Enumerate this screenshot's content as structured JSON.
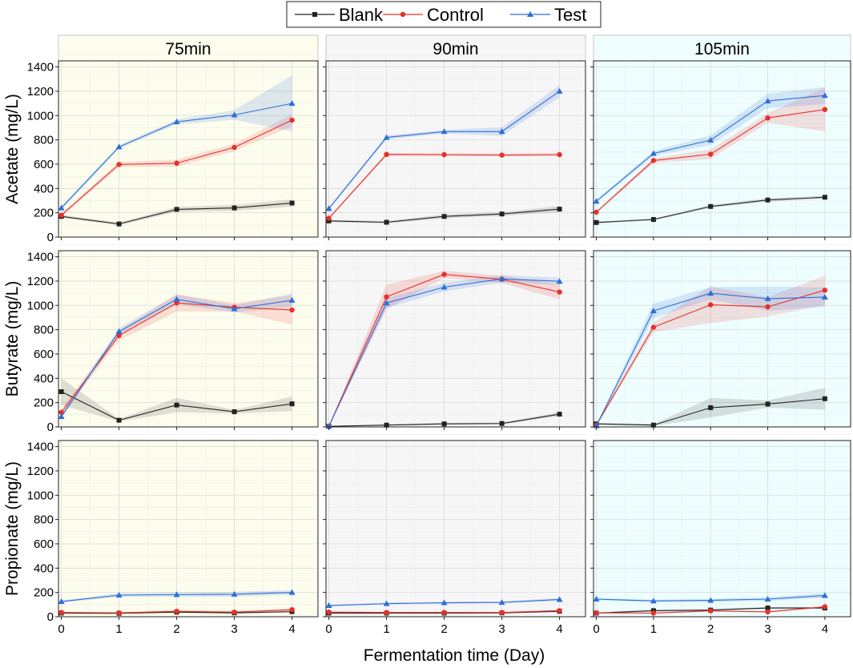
{
  "chart_data": {
    "type": "line",
    "title": "",
    "xlabel": "Fermentation time (Day)",
    "x": [
      0,
      1,
      2,
      3,
      4
    ],
    "x_ticks": [
      "0",
      "1",
      "2",
      "3",
      "4"
    ],
    "xlim": [
      -0.05,
      4.45
    ],
    "ylim": [
      0,
      1450
    ],
    "y_ticks": [
      "0",
      "200",
      "400",
      "600",
      "800",
      "1000",
      "1200",
      "1400"
    ],
    "grid": true,
    "legend": {
      "placement": "top-center",
      "entries": [
        {
          "name": "Blank",
          "color": "#222222",
          "marker": "square"
        },
        {
          "name": "Control",
          "color": "#e8302a",
          "marker": "circle"
        },
        {
          "name": "Test",
          "color": "#2c6fd8",
          "marker": "triangle"
        }
      ]
    },
    "columns": [
      {
        "title": "75min",
        "background": "#fdfdee"
      },
      {
        "title": "90min",
        "background": "#f6f6f6"
      },
      {
        "title": "105min",
        "background": "#eefefe"
      }
    ],
    "rows": [
      {
        "ylabel": "Acetate (mg/L)"
      },
      {
        "ylabel": "Butyrate (mg/L)"
      },
      {
        "ylabel": "Propionate (mg/L)"
      }
    ],
    "panels": [
      [
        {
          "series": [
            {
              "name": "Blank",
              "values": [
                170,
                108,
                228,
                240,
                280
              ],
              "band": [
                12,
                12,
                20,
                25,
                30
              ]
            },
            {
              "name": "Control",
              "values": [
                180,
                598,
                608,
                738,
                962
              ],
              "band": [
                15,
                20,
                30,
                30,
                50
              ]
            },
            {
              "name": "Test",
              "values": [
                240,
                742,
                948,
                1005,
                1100
              ],
              "band": [
                15,
                15,
                20,
                40,
                230
              ]
            }
          ]
        },
        {
          "series": [
            {
              "name": "Blank",
              "values": [
                133,
                122,
                170,
                190,
                230
              ],
              "band": [
                10,
                10,
                15,
                15,
                25
              ]
            },
            {
              "name": "Control",
              "values": [
                155,
                680,
                678,
                675,
                678
              ],
              "band": [
                10,
                12,
                12,
                12,
                15
              ]
            },
            {
              "name": "Test",
              "values": [
                235,
                820,
                868,
                868,
                1200
              ],
              "band": [
                12,
                15,
                15,
                35,
                50
              ]
            }
          ]
        },
        {
          "series": [
            {
              "name": "Blank",
              "values": [
                120,
                145,
                252,
                305,
                328
              ],
              "band": [
                8,
                8,
                12,
                15,
                12
              ]
            },
            {
              "name": "Control",
              "values": [
                205,
                630,
                682,
                980,
                1050
              ],
              "band": [
                12,
                20,
                40,
                40,
                180
              ]
            },
            {
              "name": "Test",
              "values": [
                295,
                688,
                798,
                1120,
                1165
              ],
              "band": [
                12,
                20,
                40,
                60,
                70
              ]
            }
          ]
        }
      ],
      [
        {
          "series": [
            {
              "name": "Blank",
              "values": [
                290,
                55,
                180,
                125,
                190
              ],
              "band": [
                110,
                10,
                60,
                15,
                60
              ]
            },
            {
              "name": "Control",
              "values": [
                120,
                752,
                1020,
                985,
                962
              ],
              "band": [
                25,
                40,
                70,
                35,
                120
              ]
            },
            {
              "name": "Test",
              "values": [
                85,
                785,
                1050,
                972,
                1042
              ],
              "band": [
                20,
                30,
                40,
                30,
                55
              ]
            }
          ]
        },
        {
          "series": [
            {
              "name": "Blank",
              "values": [
                5,
                15,
                25,
                28,
                105
              ],
              "band": [
                3,
                5,
                8,
                8,
                15
              ]
            },
            {
              "name": "Control",
              "values": [
                5,
                1070,
                1255,
                1215,
                1110
              ],
              "band": [
                5,
                100,
                30,
                30,
                60
              ]
            },
            {
              "name": "Test",
              "values": [
                5,
                1020,
                1150,
                1218,
                1198
              ],
              "band": [
                5,
                40,
                35,
                30,
                30
              ]
            }
          ]
        },
        {
          "series": [
            {
              "name": "Blank",
              "values": [
                25,
                15,
                158,
                188,
                232
              ],
              "band": [
                8,
                8,
                80,
                30,
                90
              ]
            },
            {
              "name": "Control",
              "values": [
                15,
                820,
                1005,
                988,
                1125
              ],
              "band": [
                8,
                40,
                150,
                80,
                120
              ]
            },
            {
              "name": "Test",
              "values": [
                10,
                955,
                1100,
                1055,
                1068
              ],
              "band": [
                8,
                60,
                50,
                100,
                80
              ]
            }
          ]
        }
      ],
      [
        {
          "series": [
            {
              "name": "Blank",
              "values": [
                30,
                28,
                38,
                32,
                42
              ],
              "band": [
                5,
                5,
                8,
                6,
                8
              ]
            },
            {
              "name": "Control",
              "values": [
                35,
                32,
                45,
                38,
                58
              ],
              "band": [
                5,
                5,
                8,
                6,
                10
              ]
            },
            {
              "name": "Test",
              "values": [
                125,
                178,
                182,
                185,
                200
              ],
              "band": [
                10,
                15,
                20,
                20,
                20
              ]
            }
          ]
        },
        {
          "series": [
            {
              "name": "Blank",
              "values": [
                30,
                30,
                30,
                32,
                45
              ],
              "band": [
                5,
                5,
                5,
                5,
                8
              ]
            },
            {
              "name": "Control",
              "values": [
                38,
                35,
                35,
                35,
                50
              ],
              "band": [
                5,
                5,
                5,
                5,
                8
              ]
            },
            {
              "name": "Test",
              "values": [
                92,
                108,
                115,
                118,
                142
              ],
              "band": [
                6,
                8,
                8,
                8,
                12
              ]
            }
          ]
        },
        {
          "series": [
            {
              "name": "Blank",
              "values": [
                30,
                50,
                55,
                72,
                72
              ],
              "band": [
                5,
                8,
                8,
                8,
                8
              ]
            },
            {
              "name": "Control",
              "values": [
                32,
                30,
                48,
                40,
                82
              ],
              "band": [
                5,
                5,
                8,
                6,
                10
              ]
            },
            {
              "name": "Test",
              "values": [
                145,
                130,
                135,
                145,
                175
              ],
              "band": [
                8,
                10,
                12,
                15,
                20
              ]
            }
          ]
        }
      ]
    ]
  }
}
